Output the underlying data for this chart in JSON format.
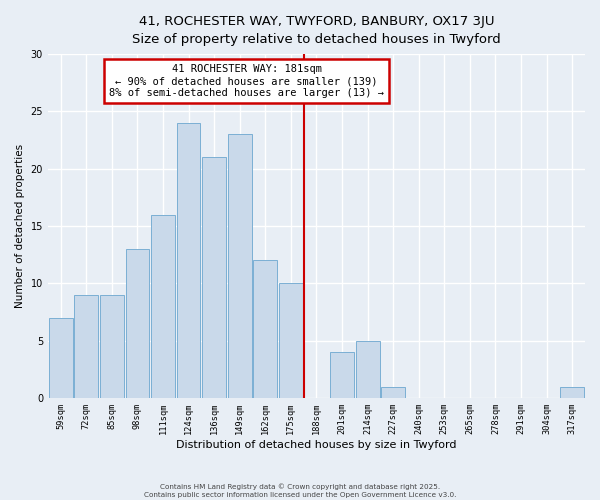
{
  "title_line1": "41, ROCHESTER WAY, TWYFORD, BANBURY, OX17 3JU",
  "title_line2": "Size of property relative to detached houses in Twyford",
  "bar_labels": [
    "59sqm",
    "72sqm",
    "85sqm",
    "98sqm",
    "111sqm",
    "124sqm",
    "136sqm",
    "149sqm",
    "162sqm",
    "175sqm",
    "188sqm",
    "201sqm",
    "214sqm",
    "227sqm",
    "240sqm",
    "253sqm",
    "265sqm",
    "278sqm",
    "291sqm",
    "304sqm",
    "317sqm"
  ],
  "bar_values": [
    7,
    9,
    9,
    13,
    16,
    24,
    21,
    23,
    12,
    10,
    0,
    4,
    5,
    1,
    0,
    0,
    0,
    0,
    0,
    0,
    1
  ],
  "bar_color": "#c9d9ea",
  "bar_edge_color": "#7bafd4",
  "xlabel": "Distribution of detached houses by size in Twyford",
  "ylabel": "Number of detached properties",
  "ylim": [
    0,
    30
  ],
  "yticks": [
    0,
    5,
    10,
    15,
    20,
    25,
    30
  ],
  "vline_x": 9.5,
  "vline_color": "#cc0000",
  "annotation_title": "41 ROCHESTER WAY: 181sqm",
  "annotation_line2": "← 90% of detached houses are smaller (139)",
  "annotation_line3": "8% of semi-detached houses are larger (13) →",
  "footer_line1": "Contains HM Land Registry data © Crown copyright and database right 2025.",
  "footer_line2": "Contains public sector information licensed under the Open Government Licence v3.0.",
  "background_color": "#e8eef5",
  "plot_bg_color": "#e8eef5",
  "grid_color": "#ffffff",
  "title_fontsize": 9.5,
  "subtitle_fontsize": 8.5
}
